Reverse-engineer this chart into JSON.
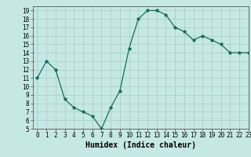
{
  "x": [
    0,
    1,
    2,
    3,
    4,
    5,
    6,
    7,
    8,
    9,
    10,
    11,
    12,
    13,
    14,
    15,
    16,
    17,
    18,
    19,
    20,
    21,
    22,
    23
  ],
  "y": [
    11,
    13,
    12,
    8.5,
    7.5,
    7,
    6.5,
    5,
    7.5,
    9.5,
    14.5,
    18,
    19,
    19,
    18.5,
    17,
    16.5,
    15.5,
    16,
    15.5,
    15,
    14,
    14,
    14
  ],
  "line_color": "#1a6b5a",
  "marker": "*",
  "marker_size": 3,
  "bg_color": "#c5e8e5",
  "grid_color": "#acd4d0",
  "xlabel": "Humidex (Indice chaleur)",
  "ylim": [
    5,
    19.5
  ],
  "xlim": [
    -0.5,
    23
  ],
  "yticks": [
    5,
    6,
    7,
    8,
    9,
    10,
    11,
    12,
    13,
    14,
    15,
    16,
    17,
    18,
    19
  ],
  "xticks": [
    0,
    1,
    2,
    3,
    4,
    5,
    6,
    7,
    8,
    9,
    10,
    11,
    12,
    13,
    14,
    15,
    16,
    17,
    18,
    19,
    20,
    21,
    22,
    23
  ],
  "tick_fontsize": 5.5,
  "label_fontsize": 7
}
